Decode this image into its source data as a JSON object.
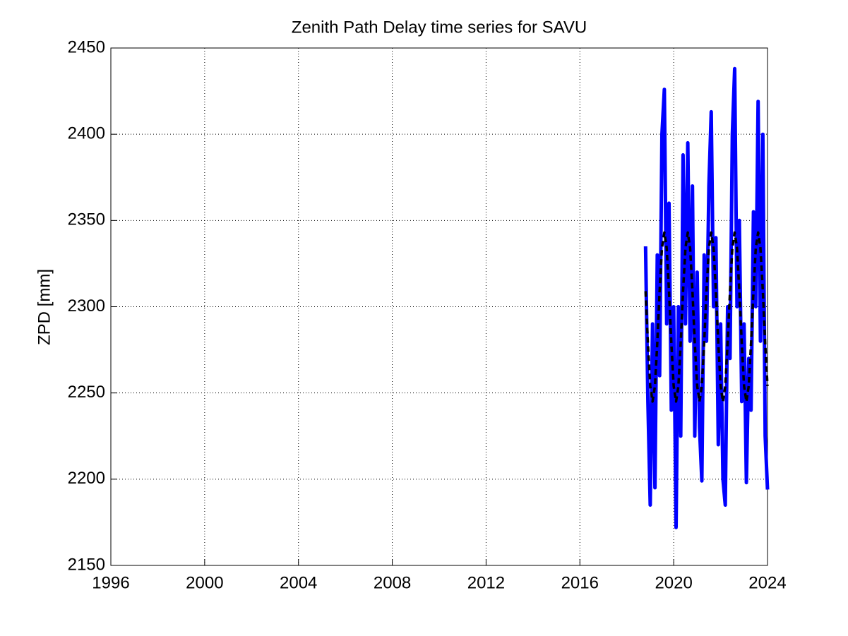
{
  "chart_data": {
    "type": "line",
    "title": "Zenith Path Delay time series for SAVU",
    "y_label": "ZPD [mm]",
    "x": [
      2018.8,
      2018.9,
      2019.0,
      2019.1,
      2019.2,
      2019.3,
      2019.4,
      2019.5,
      2019.6,
      2019.7,
      2019.8,
      2019.9,
      2020.0,
      2020.1,
      2020.2,
      2020.3,
      2020.4,
      2020.5,
      2020.6,
      2020.7,
      2020.8,
      2020.9,
      2021.0,
      2021.1,
      2021.2,
      2021.3,
      2021.4,
      2021.5,
      2021.6,
      2021.7,
      2021.8,
      2021.9,
      2022.0,
      2022.1,
      2022.2,
      2022.3,
      2022.4,
      2022.5,
      2022.6,
      2022.7,
      2022.8,
      2022.9,
      2023.0,
      2023.1,
      2023.2,
      2023.3,
      2023.4,
      2023.5,
      2023.6,
      2023.7,
      2023.8,
      2023.9,
      2024.0
    ],
    "series": [
      {
        "color": "#0000ff",
        "line_style": "solid",
        "values": [
          2335,
          2245,
          2185,
          2290,
          2195,
          2330,
          2260,
          2400,
          2426,
          2290,
          2360,
          2240,
          2300,
          2172,
          2300,
          2225,
          2388,
          2290,
          2395,
          2280,
          2370,
          2225,
          2320,
          2230,
          2199,
          2330,
          2280,
          2370,
          2413,
          2300,
          2340,
          2220,
          2290,
          2200,
          2185,
          2300,
          2270,
          2400,
          2438,
          2300,
          2350,
          2245,
          2290,
          2198,
          2270,
          2240,
          2355,
          2300,
          2419,
          2280,
          2400,
          2225,
          2194
        ]
      },
      {
        "color": "#000000",
        "line_style": "dashed",
        "values": [
          2309,
          2279,
          2254,
          2245,
          2254,
          2279,
          2309,
          2334,
          2343,
          2334,
          2309,
          2279,
          2254,
          2245,
          2254,
          2279,
          2309,
          2334,
          2343,
          2334,
          2309,
          2279,
          2254,
          2245,
          2254,
          2279,
          2309,
          2334,
          2343,
          2334,
          2309,
          2279,
          2254,
          2245,
          2254,
          2279,
          2309,
          2334,
          2343,
          2334,
          2309,
          2279,
          2254,
          2245,
          2254,
          2279,
          2309,
          2334,
          2343,
          2334,
          2309,
          2279,
          2254
        ]
      }
    ],
    "xlim": [
      1996,
      2024
    ],
    "xticks": [
      1996,
      2000,
      2004,
      2008,
      2012,
      2016,
      2020,
      2024
    ],
    "ylim": [
      2150,
      2450
    ],
    "yticks": [
      2150,
      2200,
      2250,
      2300,
      2350,
      2400,
      2450
    ],
    "grid": true
  }
}
